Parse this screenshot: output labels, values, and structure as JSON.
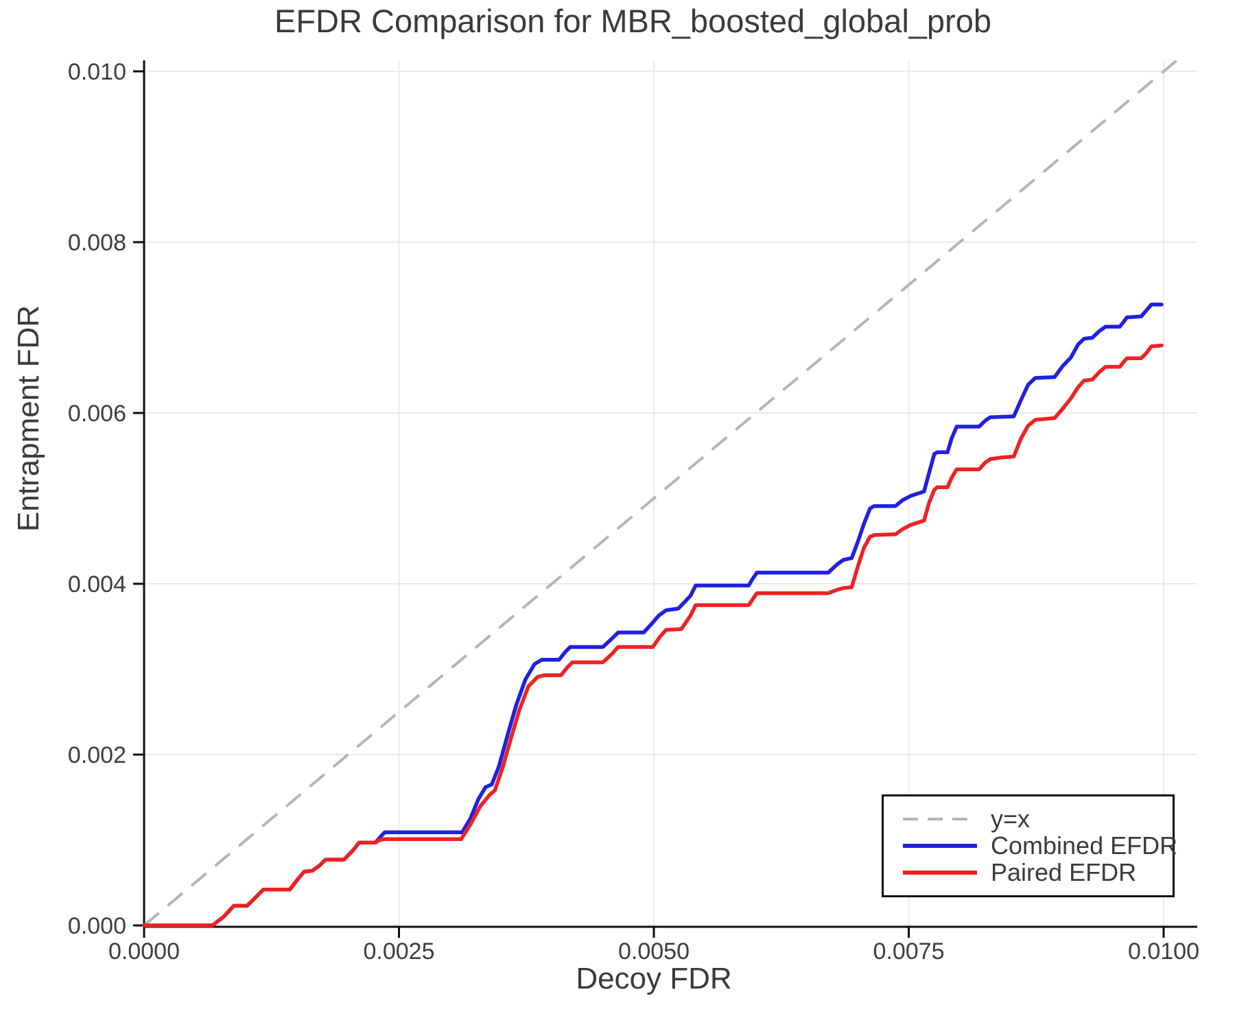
{
  "chart_data": {
    "type": "line",
    "title": "EFDR Comparison for MBR_boosted_global_prob",
    "xlabel": "Decoy FDR",
    "ylabel": "Entrapment FDR",
    "xlim": [
      0.0,
      0.01
    ],
    "ylim": [
      0.0,
      0.01
    ],
    "grid": true,
    "legend_position": "lower right",
    "xticks": {
      "values": [
        0.0,
        0.0025,
        0.005,
        0.0075,
        0.01
      ],
      "labels": [
        "0.0000",
        "0.0025",
        "0.0050",
        "0.0075",
        "0.0100"
      ]
    },
    "yticks": {
      "values": [
        0.0,
        0.002,
        0.004,
        0.006,
        0.008,
        0.01
      ],
      "labels": [
        "0.000",
        "0.002",
        "0.004",
        "0.006",
        "0.008",
        "0.010"
      ]
    },
    "series": [
      {
        "name": "y=x",
        "role": "reference-line",
        "color": "#b5b5b5",
        "dashed": true,
        "points": [
          [
            0.0,
            0.0
          ],
          [
            0.0102,
            0.0102
          ]
        ]
      },
      {
        "name": "Combined EFDR",
        "role": "data-line",
        "color": "#2020e0",
        "dashed": false,
        "points": [
          [
            0.0,
            0.0
          ],
          [
            0.00067,
            0.0
          ],
          [
            0.00078,
            0.0001
          ],
          [
            0.00088,
            0.00023
          ],
          [
            0.00101,
            0.00023
          ],
          [
            0.00107,
            0.0003
          ],
          [
            0.00117,
            0.00042
          ],
          [
            0.00143,
            0.00042
          ],
          [
            0.0015,
            0.00053
          ],
          [
            0.00157,
            0.00063
          ],
          [
            0.00165,
            0.00064
          ],
          [
            0.00172,
            0.0007
          ],
          [
            0.00178,
            0.00077
          ],
          [
            0.00196,
            0.00077
          ],
          [
            0.00205,
            0.00088
          ],
          [
            0.00211,
            0.00097
          ],
          [
            0.00227,
            0.00097
          ],
          [
            0.00232,
            0.00104
          ],
          [
            0.00236,
            0.00109
          ],
          [
            0.00312,
            0.00109
          ],
          [
            0.0032,
            0.00125
          ],
          [
            0.00328,
            0.00148
          ],
          [
            0.00335,
            0.00162
          ],
          [
            0.00341,
            0.00165
          ],
          [
            0.00348,
            0.00186
          ],
          [
            0.00357,
            0.00225
          ],
          [
            0.00365,
            0.00258
          ],
          [
            0.00374,
            0.00288
          ],
          [
            0.00383,
            0.00306
          ],
          [
            0.0039,
            0.00311
          ],
          [
            0.00407,
            0.00311
          ],
          [
            0.00413,
            0.0032
          ],
          [
            0.00418,
            0.00326
          ],
          [
            0.0045,
            0.00326
          ],
          [
            0.00459,
            0.00336
          ],
          [
            0.00465,
            0.00343
          ],
          [
            0.0049,
            0.00343
          ],
          [
            0.00497,
            0.00352
          ],
          [
            0.00505,
            0.00363
          ],
          [
            0.00512,
            0.00369
          ],
          [
            0.00524,
            0.00371
          ],
          [
            0.00536,
            0.00386
          ],
          [
            0.00541,
            0.00398
          ],
          [
            0.00593,
            0.00398
          ],
          [
            0.00597,
            0.00406
          ],
          [
            0.00601,
            0.00413
          ],
          [
            0.00671,
            0.00413
          ],
          [
            0.0068,
            0.00423
          ],
          [
            0.00686,
            0.00428
          ],
          [
            0.00694,
            0.0043
          ],
          [
            0.007,
            0.00449
          ],
          [
            0.00706,
            0.0047
          ],
          [
            0.00712,
            0.00488
          ],
          [
            0.00716,
            0.00491
          ],
          [
            0.00737,
            0.00491
          ],
          [
            0.00744,
            0.00498
          ],
          [
            0.00752,
            0.00503
          ],
          [
            0.00765,
            0.00508
          ],
          [
            0.0077,
            0.0053
          ],
          [
            0.00775,
            0.00552
          ],
          [
            0.00778,
            0.00554
          ],
          [
            0.00788,
            0.00554
          ],
          [
            0.00792,
            0.0057
          ],
          [
            0.00797,
            0.00584
          ],
          [
            0.00819,
            0.00584
          ],
          [
            0.00825,
            0.00591
          ],
          [
            0.0083,
            0.00595
          ],
          [
            0.00853,
            0.00596
          ],
          [
            0.0086,
            0.00615
          ],
          [
            0.00867,
            0.00633
          ],
          [
            0.00874,
            0.00641
          ],
          [
            0.00893,
            0.00642
          ],
          [
            0.00901,
            0.00655
          ],
          [
            0.00909,
            0.00665
          ],
          [
            0.00916,
            0.0068
          ],
          [
            0.00922,
            0.00687
          ],
          [
            0.0093,
            0.00688
          ],
          [
            0.00937,
            0.00696
          ],
          [
            0.00943,
            0.00701
          ],
          [
            0.00957,
            0.00701
          ],
          [
            0.00961,
            0.00707
          ],
          [
            0.00964,
            0.00712
          ],
          [
            0.00978,
            0.00713
          ],
          [
            0.00983,
            0.0072
          ],
          [
            0.00988,
            0.00727
          ],
          [
            0.00998,
            0.00727
          ]
        ]
      },
      {
        "name": "Paired EFDR",
        "role": "data-line",
        "color": "#ee2222",
        "dashed": false,
        "points": [
          [
            0.0,
            0.0
          ],
          [
            0.00067,
            0.0
          ],
          [
            0.00078,
            0.0001
          ],
          [
            0.00088,
            0.00023
          ],
          [
            0.00101,
            0.00023
          ],
          [
            0.00107,
            0.0003
          ],
          [
            0.00117,
            0.00042
          ],
          [
            0.00143,
            0.00042
          ],
          [
            0.0015,
            0.00053
          ],
          [
            0.00157,
            0.00063
          ],
          [
            0.00165,
            0.00064
          ],
          [
            0.00172,
            0.0007
          ],
          [
            0.00178,
            0.00077
          ],
          [
            0.00196,
            0.00077
          ],
          [
            0.00205,
            0.00088
          ],
          [
            0.00211,
            0.00097
          ],
          [
            0.00227,
            0.00097
          ],
          [
            0.00231,
            0.001
          ],
          [
            0.00235,
            0.00101
          ],
          [
            0.00311,
            0.00101
          ],
          [
            0.0032,
            0.00118
          ],
          [
            0.0033,
            0.0014
          ],
          [
            0.00339,
            0.00153
          ],
          [
            0.00344,
            0.00158
          ],
          [
            0.00352,
            0.00186
          ],
          [
            0.0036,
            0.0022
          ],
          [
            0.00368,
            0.00252
          ],
          [
            0.00377,
            0.0028
          ],
          [
            0.00386,
            0.00291
          ],
          [
            0.00393,
            0.00293
          ],
          [
            0.00409,
            0.00293
          ],
          [
            0.00415,
            0.00302
          ],
          [
            0.0042,
            0.00308
          ],
          [
            0.0045,
            0.00308
          ],
          [
            0.00459,
            0.00318
          ],
          [
            0.00465,
            0.00326
          ],
          [
            0.00499,
            0.00326
          ],
          [
            0.00506,
            0.00338
          ],
          [
            0.00512,
            0.00346
          ],
          [
            0.00527,
            0.00347
          ],
          [
            0.00536,
            0.00363
          ],
          [
            0.00541,
            0.00375
          ],
          [
            0.00593,
            0.00375
          ],
          [
            0.00597,
            0.00382
          ],
          [
            0.00601,
            0.00389
          ],
          [
            0.00671,
            0.00389
          ],
          [
            0.0068,
            0.00393
          ],
          [
            0.00686,
            0.00395
          ],
          [
            0.00694,
            0.00396
          ],
          [
            0.007,
            0.0042
          ],
          [
            0.00706,
            0.00442
          ],
          [
            0.00712,
            0.00455
          ],
          [
            0.00716,
            0.00457
          ],
          [
            0.00737,
            0.00458
          ],
          [
            0.00744,
            0.00464
          ],
          [
            0.00752,
            0.00469
          ],
          [
            0.00765,
            0.00474
          ],
          [
            0.0077,
            0.00495
          ],
          [
            0.00775,
            0.0051
          ],
          [
            0.00778,
            0.00513
          ],
          [
            0.00788,
            0.00513
          ],
          [
            0.00792,
            0.00524
          ],
          [
            0.00797,
            0.00534
          ],
          [
            0.00819,
            0.00534
          ],
          [
            0.00825,
            0.00542
          ],
          [
            0.0083,
            0.00546
          ],
          [
            0.00842,
            0.00548
          ],
          [
            0.00853,
            0.00549
          ],
          [
            0.0086,
            0.0057
          ],
          [
            0.00867,
            0.00585
          ],
          [
            0.00874,
            0.00592
          ],
          [
            0.00893,
            0.00594
          ],
          [
            0.00901,
            0.00605
          ],
          [
            0.00909,
            0.00617
          ],
          [
            0.00916,
            0.0063
          ],
          [
            0.00922,
            0.00638
          ],
          [
            0.0093,
            0.00639
          ],
          [
            0.00937,
            0.00648
          ],
          [
            0.00943,
            0.00654
          ],
          [
            0.00957,
            0.00654
          ],
          [
            0.00961,
            0.0066
          ],
          [
            0.00964,
            0.00664
          ],
          [
            0.00978,
            0.00664
          ],
          [
            0.00983,
            0.0067
          ],
          [
            0.00988,
            0.00678
          ],
          [
            0.00998,
            0.00679
          ]
        ]
      }
    ]
  }
}
